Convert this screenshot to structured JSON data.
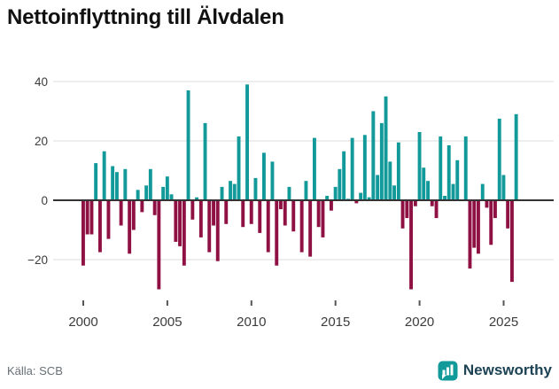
{
  "header": {
    "title": "Nettoinflyttning till Älvdalen"
  },
  "chart_data": {
    "type": "bar",
    "title": "Nettoinflyttning till Älvdalen",
    "frequency": "quarterly",
    "start_year": 2000,
    "start_quarter": 1,
    "values": [
      -22,
      -11.5,
      -11.5,
      12.5,
      -17.5,
      16.5,
      -13,
      11.5,
      9.5,
      -8.5,
      10.5,
      -18,
      -10,
      3.5,
      -4,
      5,
      10.5,
      -5,
      -30,
      4.5,
      8,
      2,
      -14,
      -15.5,
      -22,
      37,
      -6.5,
      1,
      -12.5,
      26,
      -17.5,
      -8.5,
      -20.5,
      4.5,
      -8,
      6.5,
      5.5,
      21.5,
      -9,
      39,
      -8,
      7.5,
      -11,
      16,
      -17.5,
      13,
      -22,
      -3,
      -8.5,
      4.5,
      -10.5,
      0,
      -17.5,
      6.5,
      -19,
      21,
      -9,
      -12.5,
      1.5,
      -3.5,
      4.5,
      10.5,
      16.5,
      0.5,
      21,
      -1,
      2.5,
      22,
      1,
      30,
      8.5,
      26,
      35,
      13,
      5,
      19.5,
      -9.5,
      -6,
      -30,
      -2,
      23,
      11,
      6.5,
      -2,
      -6,
      21.5,
      1.5,
      18.5,
      5.5,
      13.5,
      0,
      21.5,
      -23,
      -16,
      -18,
      5.5,
      -2.5,
      -15,
      -6,
      27.5,
      8.5,
      -9.5,
      -27.5,
      29
    ],
    "yticks": [
      -20,
      0,
      20,
      40
    ],
    "xticks": [
      2000,
      2005,
      2010,
      2015,
      2020,
      2025
    ],
    "ylim": [
      -33,
      42
    ],
    "grid": true,
    "legend": "none",
    "colors": {
      "positive": "#12999a",
      "negative": "#8f1144",
      "grid": "#e3e3e3",
      "axis": "#333333",
      "tick_label": "#3c3c3c"
    }
  },
  "footer": {
    "source": "Källa: SCB",
    "brand": "Newsworthy"
  }
}
